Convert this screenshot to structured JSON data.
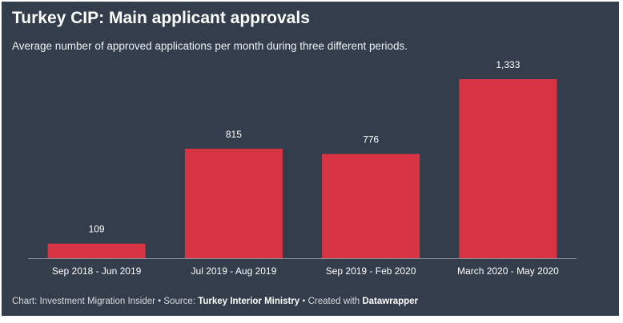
{
  "title": "Turkey CIP: Main applicant approvals",
  "subtitle": "Average number of approved applications per month during three different periods.",
  "footer": {
    "chart_by": "Chart: Investment Migration Insider",
    "sep1": " • Source: ",
    "source": "Turkey Interior Ministry",
    "sep2": " • Created with ",
    "tool": "Datawrapper"
  },
  "colors": {
    "background": "#333d4b",
    "bar": "#d93444",
    "baseline": "#8a929c",
    "text": "#ffffff"
  },
  "chart_data": {
    "type": "bar",
    "categories": [
      "Sep 2018 - Jun 2019",
      "Jul 2019 - Aug 2019",
      "Sep 2019 - Feb 2020",
      "March 2020 - May 2020"
    ],
    "values": [
      109,
      815,
      776,
      1333
    ],
    "value_labels": [
      "109",
      "815",
      "776",
      "1,333"
    ],
    "title": "Turkey CIP: Main applicant approvals",
    "xlabel": "",
    "ylabel": "",
    "ylim": [
      0,
      1333
    ],
    "grid": false,
    "legend": "none"
  }
}
